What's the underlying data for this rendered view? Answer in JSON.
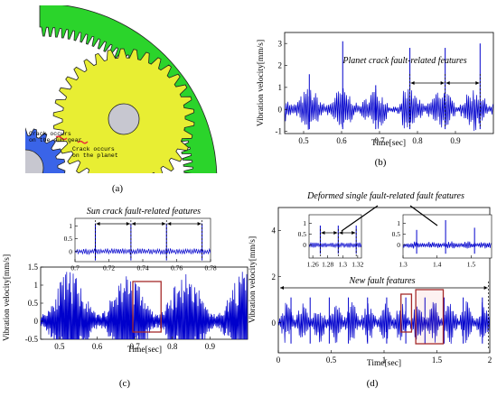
{
  "panels": {
    "a": {
      "label": "(a)",
      "annotations": {
        "sun_crack_line1": "Crack occurs",
        "sun_crack_line2": "on the sun gear",
        "planet_crack_line1": "Crack occurs",
        "planet_crack_line2": "on the planet"
      },
      "colors": {
        "ring_gear": "#2bd42b",
        "planet_gear": "#e8ee33",
        "sun_gear": "#3a64e8",
        "crack_marker": "#e8303a",
        "hub": "#c7c7d0"
      }
    },
    "b": {
      "label": "(b)",
      "annotation": "Planet crack fault-related features"
    },
    "c": {
      "label": "(c)",
      "annotation": "Sun crack fault-related features"
    },
    "d": {
      "label": "(d)",
      "annotation_top": "Deformed single fault-related fault features",
      "annotation_mid": "New fault features"
    }
  },
  "chart_data": [
    {
      "id": "b",
      "type": "line",
      "xlabel": "Time[sec]",
      "ylabel": "Vibration velocity[mm/s]",
      "xlim": [
        0.45,
        1.0
      ],
      "ylim": [
        -1.1,
        3.5
      ],
      "xticks": [
        "0.5",
        "0.6",
        "0.7",
        "0.8",
        "0.9"
      ],
      "yticks": [
        "-1",
        "0",
        "1",
        "2",
        "3"
      ],
      "impulse_times": [
        0.515,
        0.603,
        0.69,
        0.78,
        0.873,
        0.965
      ],
      "impulse_peaks": [
        1.6,
        3.1,
        1.1,
        2.8,
        2.8,
        3.0
      ],
      "color": "#0000cc"
    },
    {
      "id": "c-main",
      "type": "line",
      "xlabel": "Time[sec]",
      "ylabel": "Vibration velocity[mm/s]",
      "xlim": [
        0.45,
        1.0
      ],
      "ylim": [
        -0.5,
        1.5
      ],
      "xticks": [
        "0.5",
        "0.6",
        "0.7",
        "0.8",
        "0.9"
      ],
      "yticks": [
        "-0.5",
        "0",
        "0.5",
        "1",
        "1.5"
      ],
      "highlight_x": [
        0.695,
        0.77
      ],
      "color": "#0000cc"
    },
    {
      "id": "c-inset",
      "type": "line",
      "xlim": [
        0.7,
        0.78
      ],
      "ylim": [
        -0.4,
        1.3
      ],
      "xticks": [
        "0.7",
        "0.72",
        "0.74",
        "0.76",
        "0.78"
      ],
      "yticks": [
        "0",
        "0.5",
        "1"
      ],
      "impulse_times": [
        0.712,
        0.733,
        0.754,
        0.775
      ],
      "color": "#0000cc"
    },
    {
      "id": "d-main",
      "type": "line",
      "xlabel": "Time[sec]",
      "ylabel": "Vibration velocity[mm/s]",
      "xlim": [
        0,
        2
      ],
      "ylim": [
        -1.3,
        5
      ],
      "xticks": [
        "0",
        "0.5",
        "1",
        "1.5",
        "2"
      ],
      "yticks": [
        "0",
        "2",
        "4"
      ],
      "highlight_small_x": [
        1.16,
        1.26
      ],
      "highlight_large_x": [
        1.3,
        1.56
      ],
      "color": "#0000cc"
    },
    {
      "id": "d-inset-left",
      "type": "line",
      "xlim": [
        1.255,
        1.325
      ],
      "ylim": [
        -0.6,
        1.4
      ],
      "xticks": [
        "1.26",
        "1.28",
        "1.3",
        "1.32"
      ],
      "yticks": [
        "0",
        "0.5",
        "1"
      ],
      "impulse_times": [
        1.27,
        1.294,
        1.318
      ],
      "color": "#0000cc"
    },
    {
      "id": "d-inset-right",
      "type": "line",
      "xlim": [
        1.3,
        1.56
      ],
      "ylim": [
        -0.6,
        1.4
      ],
      "xticks": [
        "1.3",
        "1.4",
        "1.5"
      ],
      "yticks": [
        "0",
        "0.5",
        "1"
      ],
      "impulse_times": [
        1.34,
        1.425,
        1.51
      ],
      "color": "#0000cc"
    }
  ]
}
